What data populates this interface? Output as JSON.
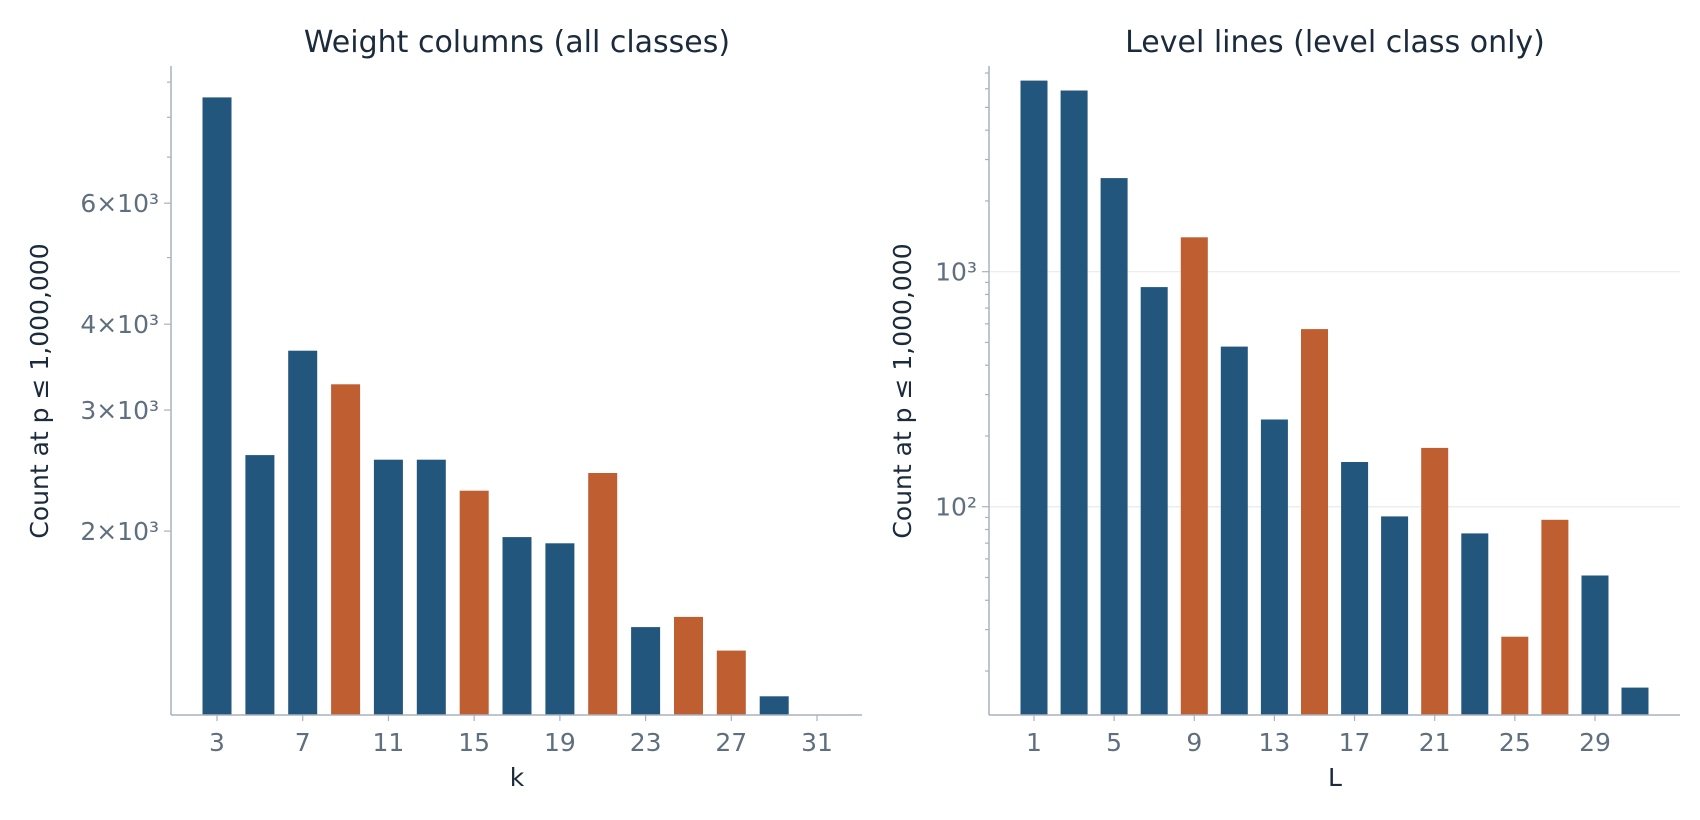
{
  "chart_data": [
    {
      "type": "bar",
      "title": "Weight columns (all classes)",
      "xlabel": "k",
      "ylabel": "Count at p ≤ 1,000,000",
      "y_scale": "log",
      "ylim": [
        1080,
        9500
      ],
      "categories": [
        "3",
        "5",
        "7",
        "9",
        "11",
        "13",
        "15",
        "17",
        "19",
        "21",
        "23",
        "25",
        "27",
        "29",
        "31"
      ],
      "x_tick_labels": [
        "3",
        "7",
        "11",
        "15",
        "19",
        "23",
        "27",
        "31"
      ],
      "y_tick_labels": [
        {
          "value": 2000,
          "label": "2×10³"
        },
        {
          "value": 3000,
          "label": "3×10³"
        },
        {
          "value": 4000,
          "label": "4×10³"
        },
        {
          "value": 6000,
          "label": "6×10³"
        }
      ],
      "y_minor_ticks": [
        5000,
        7000,
        8000,
        9000
      ],
      "grid": false,
      "values": [
        8550,
        2580,
        3660,
        3270,
        2540,
        2540,
        2290,
        1960,
        1920,
        2430,
        1450,
        1500,
        1340,
        1150,
        1080
      ],
      "highlight": [
        false,
        false,
        false,
        true,
        false,
        false,
        true,
        false,
        false,
        true,
        false,
        true,
        true,
        false,
        false
      ],
      "colors": {
        "base": "#23567d",
        "highlight": "#bf5e31"
      }
    },
    {
      "type": "bar",
      "title": "Level lines (level class only)",
      "xlabel": "L",
      "ylabel": "Count at p ≤ 1,000,000",
      "y_scale": "log",
      "ylim": [
        13,
        7500
      ],
      "categories": [
        "1",
        "3",
        "5",
        "7",
        "9",
        "11",
        "13",
        "15",
        "17",
        "19",
        "21",
        "23",
        "25",
        "27",
        "29",
        "31"
      ],
      "x_tick_labels": [
        "1",
        "5",
        "9",
        "13",
        "17",
        "21",
        "25",
        "29"
      ],
      "y_tick_labels": [
        {
          "value": 100,
          "label": "10²"
        },
        {
          "value": 1000,
          "label": "10³"
        }
      ],
      "y_minor_ticks": [
        20,
        30,
        40,
        50,
        60,
        70,
        80,
        90,
        200,
        300,
        400,
        500,
        600,
        700,
        800,
        900,
        2000,
        3000,
        4000,
        5000,
        6000,
        7000
      ],
      "grid": true,
      "values": [
        6500,
        5900,
        2500,
        860,
        1400,
        480,
        235,
        570,
        155,
        91,
        178,
        77,
        28,
        88,
        51,
        17
      ],
      "highlight": [
        false,
        false,
        false,
        false,
        true,
        false,
        false,
        true,
        false,
        false,
        true,
        false,
        true,
        true,
        false,
        false
      ],
      "colors": {
        "base": "#23567d",
        "highlight": "#bf5e31"
      }
    }
  ]
}
